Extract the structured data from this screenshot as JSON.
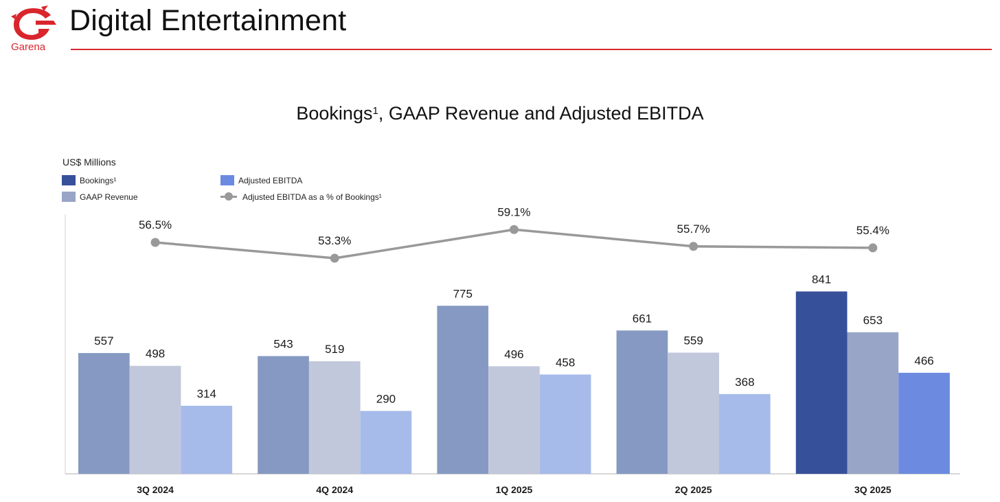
{
  "header": {
    "logo_text": "Garena",
    "title": "Digital Entertainment"
  },
  "colors": {
    "accent": "#d9262c",
    "bookings": "#8599c2",
    "bookings_highlight": "#37509a",
    "gaap_revenue": "#c2c8db",
    "gaap_revenue_highlight": "#98a5c6",
    "adjusted_ebitda": "#a7bbea",
    "adjusted_ebitda_highlight": "#6c8be0",
    "margin_line": "#999999"
  },
  "chart_data": {
    "type": "bar",
    "title": "Bookings",
    "title_superscript": "1",
    "title_rest": ", GAAP Revenue and Adjusted EBITDA",
    "ylabel": "US$ Millions",
    "categories": [
      "3Q 2024",
      "4Q 2024",
      "1Q 2025",
      "2Q 2025",
      "3Q 2025"
    ],
    "series": [
      {
        "name": "Bookings¹",
        "values": [
          557,
          543,
          775,
          661,
          841
        ]
      },
      {
        "name": "GAAP Revenue",
        "values": [
          498,
          519,
          496,
          559,
          653
        ]
      },
      {
        "name": "Adjusted EBITDA",
        "values": [
          314,
          290,
          458,
          368,
          466
        ]
      }
    ],
    "line_series": {
      "name": "Adjusted EBITDA as a % of Bookings¹",
      "values": [
        56.5,
        53.3,
        59.1,
        55.7,
        55.4
      ],
      "labels": [
        "56.5%",
        "53.3%",
        "59.1%",
        "55.7%",
        "55.4%"
      ]
    },
    "highlight_category": "3Q 2025",
    "ylim": [
      0,
      1200
    ],
    "grid": false,
    "legend_position": "top-left"
  }
}
